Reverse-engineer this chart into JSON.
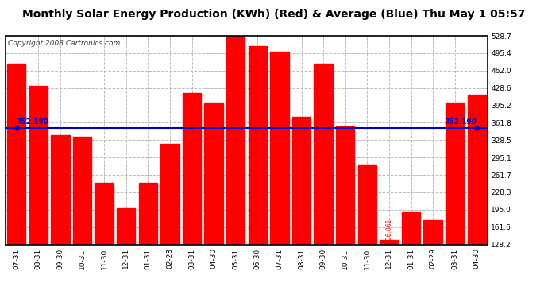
{
  "title": "Monthly Solar Energy Production (KWh) (Red) & Average (Blue) Thu May 1 05:57",
  "copyright": "Copyright 2008 Cartronics.com",
  "categories": [
    "07-31",
    "08-31",
    "09-30",
    "10-31",
    "11-30",
    "12-31",
    "01-31",
    "02-28",
    "03-31",
    "04-30",
    "05-31",
    "06-30",
    "07-31",
    "08-31",
    "09-30",
    "10-31",
    "11-30",
    "12-31",
    "01-31",
    "02-29",
    "03-31",
    "04-30"
  ],
  "values": [
    475.669,
    432.147,
    337.312,
    334.991,
    246.56,
    197.058,
    246.855,
    321.438,
    419.559,
    400.304,
    528.737,
    508.459,
    497.902,
    373.672,
    475.479,
    355.377,
    279.57,
    136.061,
    190.382,
    174.691,
    400.405,
    415.653
  ],
  "average": 352.19,
  "bar_color": "#FF0000",
  "avg_line_color": "#0000CC",
  "avg_label_color": "#0000CC",
  "background_color": "#FFFFFF",
  "plot_bg_color": "#FFFFFF",
  "grid_color": "#BBBBBB",
  "text_color": "#000000",
  "bar_label_color": "#FF0000",
  "ylim_min": 128.2,
  "ylim_max": 528.7,
  "yticks": [
    128.2,
    161.6,
    195.0,
    228.3,
    261.7,
    295.1,
    328.5,
    361.8,
    395.2,
    428.6,
    462.0,
    495.4,
    528.7
  ],
  "title_fontsize": 10,
  "copyright_fontsize": 6.5,
  "tick_fontsize": 6.5,
  "bar_label_fontsize": 5.5,
  "avg_label_fontsize": 6.5
}
